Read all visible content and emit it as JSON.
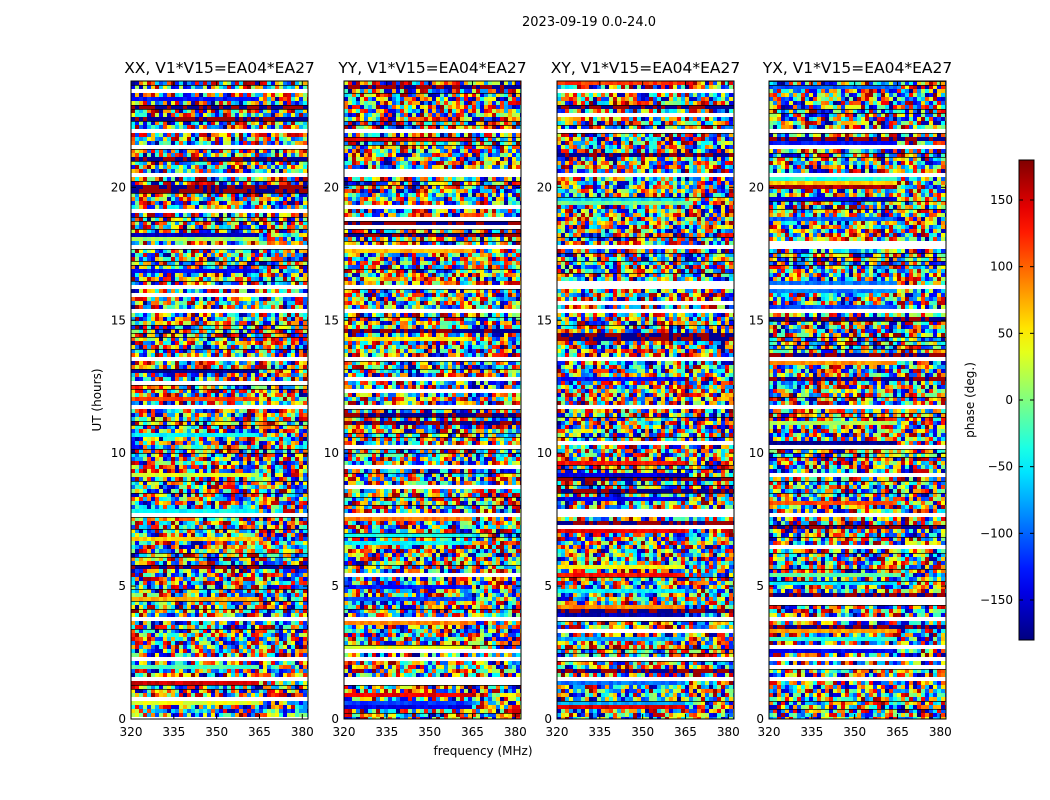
{
  "chart_data": {
    "type": "heatmap",
    "suptitle": "2023-09-19 0.0-24.0",
    "xlabel": "frequency (MHz)",
    "ylabel": "UT (hours)",
    "xlim": [
      320,
      382
    ],
    "ylim": [
      0,
      24
    ],
    "xticks": [
      320,
      335,
      350,
      365,
      380
    ],
    "yticks": [
      0,
      5,
      10,
      15,
      20
    ],
    "panels": [
      {
        "title": "XX, V1*V15=EA04*EA27",
        "polarization": "XX"
      },
      {
        "title": "YY, V1*V15=EA04*EA27",
        "polarization": "YY"
      },
      {
        "title": "XY, V1*V15=EA04*EA27",
        "polarization": "XY"
      },
      {
        "title": "YX, V1*V15=EA04*EA27",
        "polarization": "YX"
      }
    ],
    "colorbar": {
      "label": "phase (deg.)",
      "range": [
        -180,
        180
      ],
      "ticks": [
        -150,
        -100,
        -50,
        0,
        50,
        100,
        150
      ],
      "tick_labels": [
        "−150",
        "−100",
        "−50",
        "0",
        "50",
        "100",
        "150"
      ],
      "colormap": "jet"
    },
    "flagged_gaps_ut": [
      1.5,
      2.2,
      3.7,
      7.6,
      11.7,
      13.5,
      15.3,
      16.2,
      17.8,
      20.5,
      22.1
    ]
  }
}
